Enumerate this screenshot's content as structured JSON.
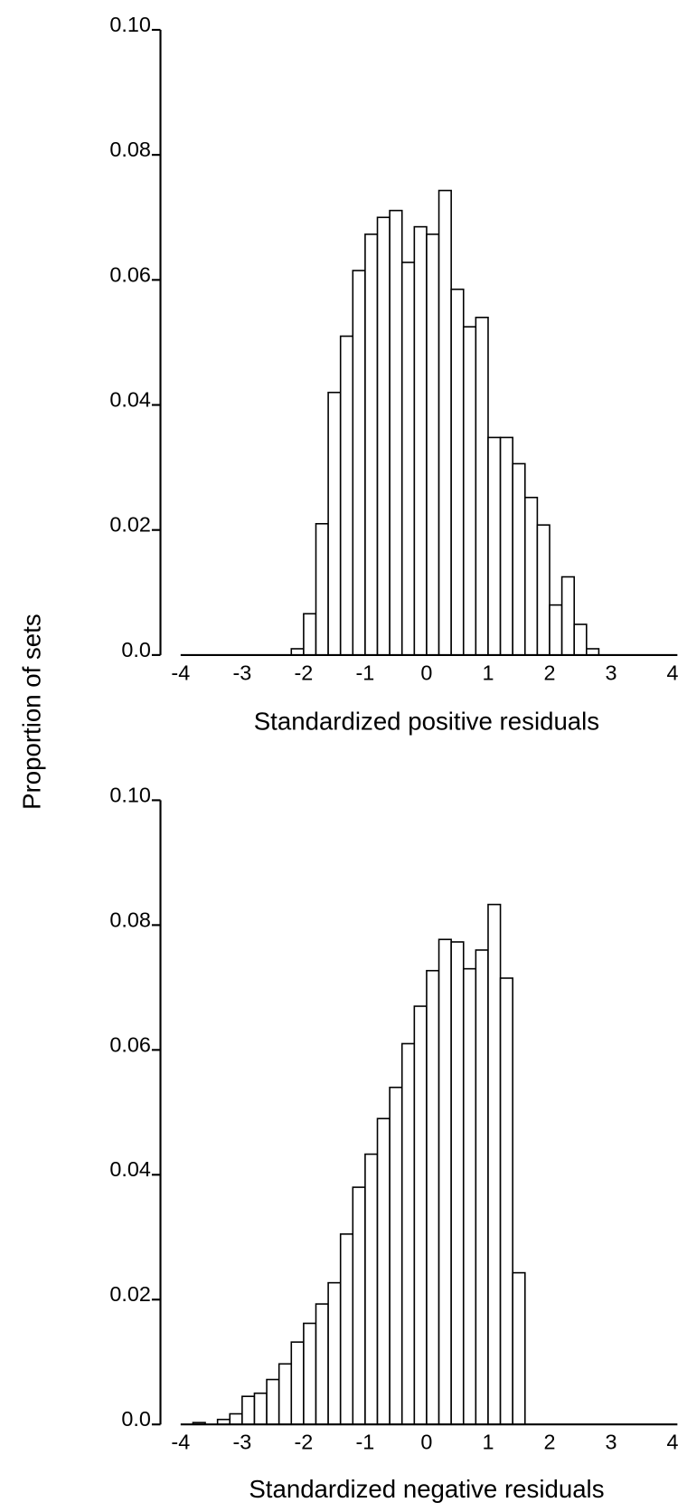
{
  "ylabel": "Proportion of sets",
  "chart_data": [
    {
      "type": "histogram",
      "xlabel": "Standardized positive residuals",
      "bins": [
        -2.2,
        -2.0,
        -1.8,
        -1.6,
        -1.4,
        -1.2,
        -1.0,
        -0.8,
        -0.6,
        -0.4,
        -0.2,
        0.0,
        0.2,
        0.4,
        0.6,
        0.8,
        1.0,
        1.2,
        1.4,
        1.6,
        1.8,
        2.0,
        2.2,
        2.4,
        2.6,
        2.8
      ],
      "values": [
        0.001,
        0.0066,
        0.021,
        0.042,
        0.051,
        0.0615,
        0.0673,
        0.07,
        0.0711,
        0.0628,
        0.0685,
        0.0673,
        0.0743,
        0.0585,
        0.0525,
        0.054,
        0.0348,
        0.0348,
        0.0306,
        0.0252,
        0.0208,
        0.008,
        0.0125,
        0.0049,
        0.001
      ],
      "color": "#ffffff",
      "xlim": [
        -4,
        4
      ],
      "xticks": [
        -4,
        -3,
        -2,
        -1,
        0,
        1,
        2,
        3,
        4
      ],
      "ylim": [
        0,
        0.1
      ],
      "yticks": [
        {
          "value": 0,
          "label": "0.0"
        },
        {
          "value": 0.02,
          "label": "0.02"
        },
        {
          "value": 0.04,
          "label": "0.04"
        },
        {
          "value": 0.06,
          "label": "0.06"
        },
        {
          "value": 0.08,
          "label": "0.08"
        },
        {
          "value": 0.1,
          "label": "0.10"
        }
      ]
    },
    {
      "type": "histogram",
      "xlabel": "Standardized negative residuals",
      "bins": [
        -3.8,
        -3.6,
        -3.4,
        -3.2,
        -3.0,
        -2.8,
        -2.6,
        -2.4,
        -2.2,
        -2.0,
        -1.8,
        -1.6,
        -1.4,
        -1.2,
        -1.0,
        -0.8,
        -0.6,
        -0.4,
        -0.2,
        0.0,
        0.2,
        0.4,
        0.6,
        0.8,
        1.0,
        1.2,
        1.4,
        1.6
      ],
      "values": [
        0.0003,
        0,
        0.0008,
        0.0017,
        0.0045,
        0.005,
        0.0072,
        0.0097,
        0.0132,
        0.0162,
        0.0193,
        0.0227,
        0.0305,
        0.038,
        0.0433,
        0.049,
        0.054,
        0.061,
        0.067,
        0.0727,
        0.0777,
        0.0773,
        0.073,
        0.076,
        0.0833,
        0.0715,
        0.0243
      ],
      "color": "#ffffff",
      "xlim": [
        -4,
        4
      ],
      "xticks": [
        -4,
        -3,
        -2,
        -1,
        0,
        1,
        2,
        3,
        4
      ],
      "ylim": [
        0,
        0.1
      ],
      "yticks": [
        {
          "value": 0,
          "label": "0.0"
        },
        {
          "value": 0.02,
          "label": "0.02"
        },
        {
          "value": 0.04,
          "label": "0.04"
        },
        {
          "value": 0.06,
          "label": "0.06"
        },
        {
          "value": 0.08,
          "label": "0.08"
        },
        {
          "value": 0.1,
          "label": "0.10"
        }
      ]
    }
  ]
}
